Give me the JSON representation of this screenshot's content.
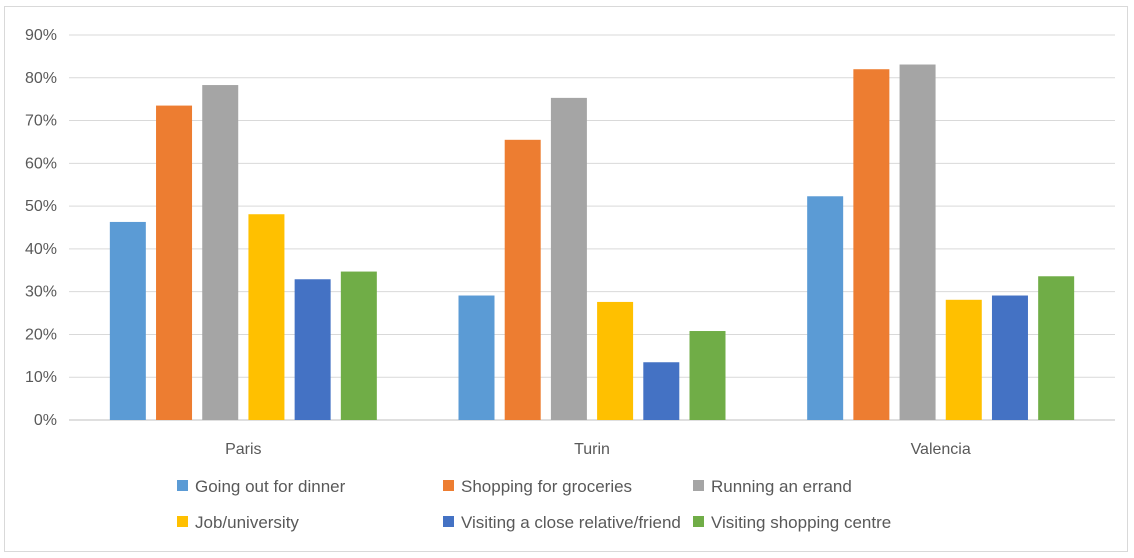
{
  "chart_data": {
    "type": "bar",
    "title": "",
    "xlabel": "",
    "ylabel": "",
    "categories": [
      "Paris",
      "Turin",
      "Valencia"
    ],
    "ylim": [
      0,
      90
    ],
    "yticks": [
      0,
      10,
      20,
      30,
      40,
      50,
      60,
      70,
      80,
      90
    ],
    "ytick_labels": [
      "0%",
      "10%",
      "20%",
      "30%",
      "40%",
      "50%",
      "60%",
      "70%",
      "80%",
      "90%"
    ],
    "grid": true,
    "legend_position": "bottom",
    "series": [
      {
        "name": "Going out for dinner",
        "color": "#5b9bd5",
        "values": [
          46.3,
          29.1,
          52.3
        ]
      },
      {
        "name": "Shopping for groceries",
        "color": "#ed7d31",
        "values": [
          73.5,
          65.5,
          82.0
        ]
      },
      {
        "name": "Running an errand",
        "color": "#a5a5a5",
        "values": [
          78.3,
          75.3,
          83.1
        ]
      },
      {
        "name": "Job/university",
        "color": "#ffc000",
        "values": [
          48.1,
          27.6,
          28.1
        ]
      },
      {
        "name": "Visiting a close relative/friend",
        "color": "#4472c4",
        "values": [
          32.9,
          13.5,
          29.1
        ]
      },
      {
        "name": "Visiting shopping centre",
        "color": "#70ad47",
        "values": [
          34.7,
          20.8,
          33.6
        ]
      }
    ]
  }
}
